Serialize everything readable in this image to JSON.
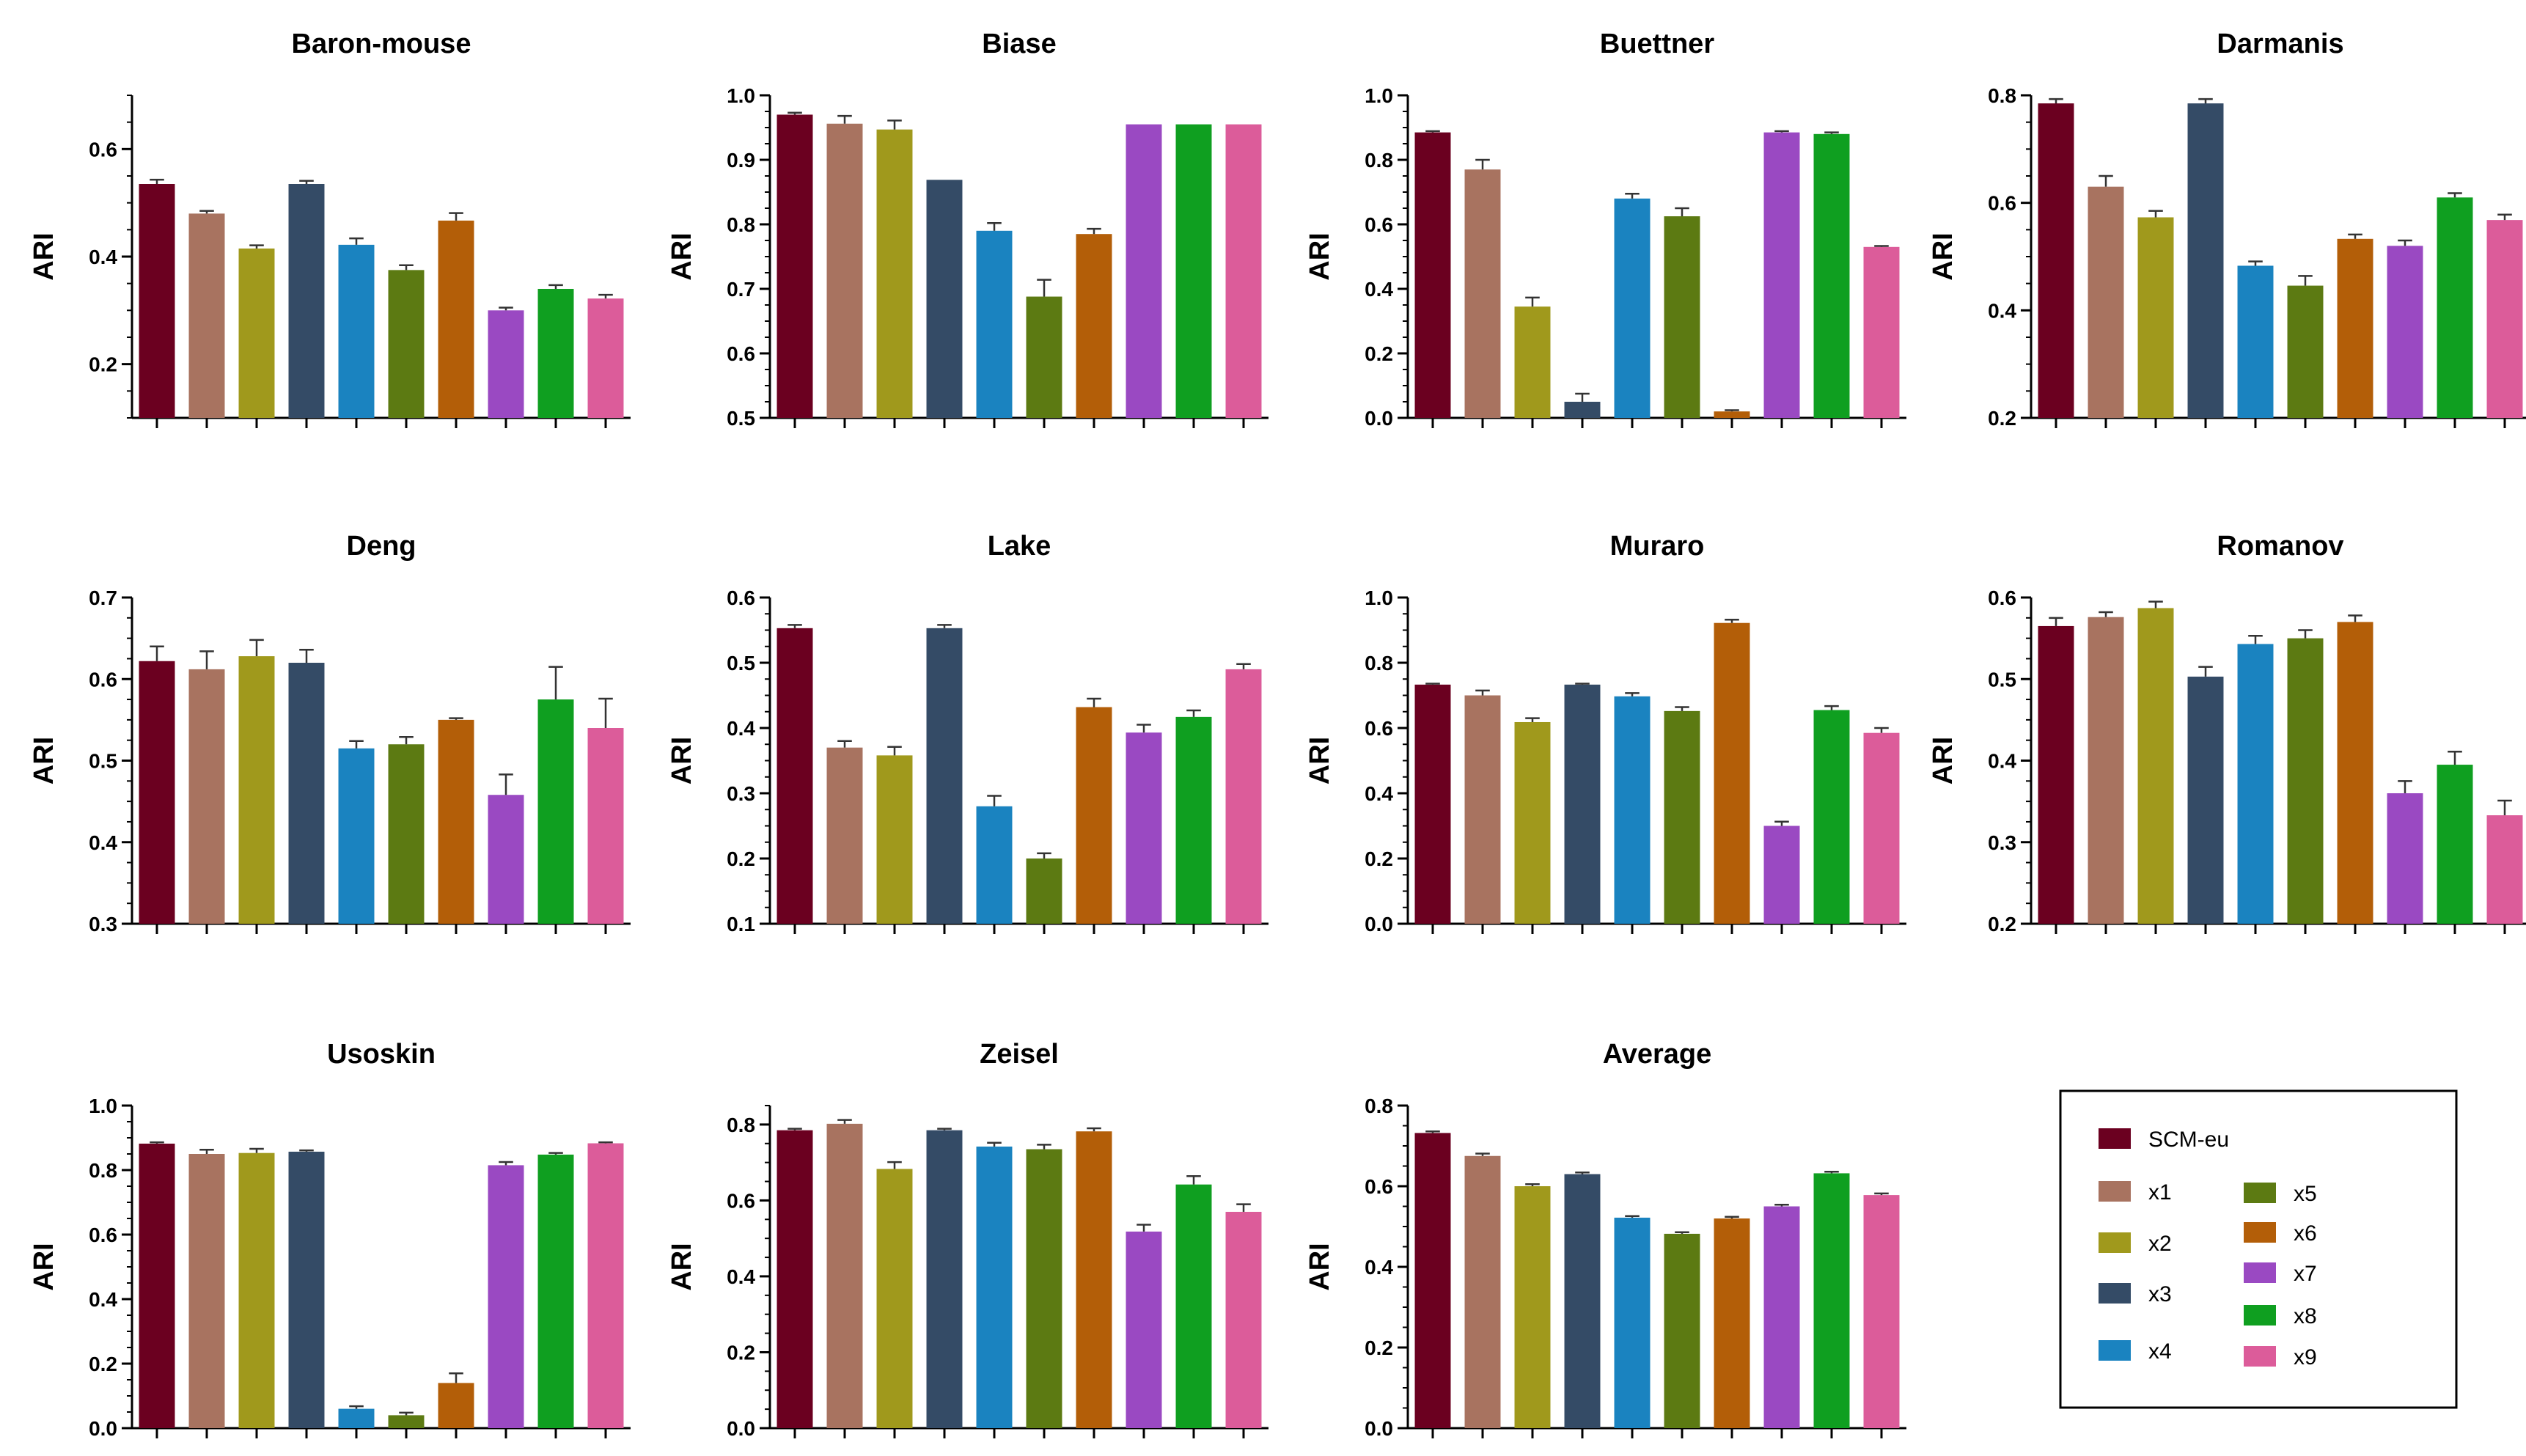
{
  "legend": {
    "items": [
      {
        "name": "SCM-eu",
        "color": "#6b0020"
      },
      {
        "name": "x1",
        "color": "#a87360"
      },
      {
        "name": "x2",
        "color": "#a0991c"
      },
      {
        "name": "x3",
        "color": "#344b66"
      },
      {
        "name": "x4",
        "color": "#1a83c0"
      },
      {
        "name": "x5",
        "color": "#5c7a12"
      },
      {
        "name": "x6",
        "color": "#b35e08"
      },
      {
        "name": "x7",
        "color": "#9a49c2"
      },
      {
        "name": "x8",
        "color": "#0f9f20"
      },
      {
        "name": "x9",
        "color": "#dc5c9a"
      }
    ]
  },
  "chart_data": [
    {
      "type": "bar",
      "title": "Baron-mouse",
      "ylabel": "ARI",
      "ylim": [
        0.1,
        0.7
      ],
      "yticks": [
        0.2,
        0.4,
        0.6
      ],
      "values": [
        0.535,
        0.48,
        0.415,
        0.535,
        0.422,
        0.375,
        0.467,
        0.3,
        0.34,
        0.322
      ],
      "errors": [
        0.008,
        0.005,
        0.006,
        0.006,
        0.012,
        0.009,
        0.014,
        0.005,
        0.007,
        0.007
      ]
    },
    {
      "type": "bar",
      "title": "Biase",
      "ylabel": "ARI",
      "ylim": [
        0.5,
        1.0
      ],
      "yticks": [
        0.5,
        0.6,
        0.7,
        0.8,
        0.9,
        1.0
      ],
      "values": [
        0.97,
        0.956,
        0.947,
        0.869,
        0.79,
        0.688,
        0.785,
        0.955,
        0.955,
        0.955
      ],
      "errors": [
        0.003,
        0.012,
        0.014,
        0.0,
        0.012,
        0.026,
        0.008,
        0.0,
        0.0,
        0.0
      ]
    },
    {
      "type": "bar",
      "title": "Buettner",
      "ylabel": "ARI",
      "ylim": [
        0.0,
        1.0
      ],
      "yticks": [
        0.0,
        0.2,
        0.4,
        0.6,
        0.8,
        1.0
      ],
      "values": [
        0.885,
        0.77,
        0.345,
        0.05,
        0.68,
        0.625,
        0.02,
        0.885,
        0.88,
        0.53
      ],
      "errors": [
        0.004,
        0.03,
        0.028,
        0.025,
        0.015,
        0.025,
        0.004,
        0.004,
        0.005,
        0.003
      ]
    },
    {
      "type": "bar",
      "title": "Darmanis",
      "ylabel": "ARI",
      "ylim": [
        0.2,
        0.8
      ],
      "yticks": [
        0.2,
        0.4,
        0.6,
        0.8
      ],
      "values": [
        0.785,
        0.63,
        0.573,
        0.785,
        0.483,
        0.446,
        0.533,
        0.52,
        0.61,
        0.568
      ],
      "errors": [
        0.008,
        0.02,
        0.012,
        0.008,
        0.008,
        0.018,
        0.008,
        0.01,
        0.008,
        0.01
      ]
    },
    {
      "type": "bar",
      "title": "Deng",
      "ylabel": "ARI",
      "ylim": [
        0.3,
        0.7
      ],
      "yticks": [
        0.3,
        0.4,
        0.5,
        0.6,
        0.7
      ],
      "values": [
        0.622,
        0.612,
        0.628,
        0.62,
        0.515,
        0.52,
        0.55,
        0.458,
        0.575,
        0.54
      ],
      "errors": [
        0.018,
        0.022,
        0.02,
        0.016,
        0.009,
        0.009,
        0.002,
        0.025,
        0.04,
        0.036
      ]
    },
    {
      "type": "bar",
      "title": "Lake",
      "ylabel": "ARI",
      "ylim": [
        0.1,
        0.6
      ],
      "yticks": [
        0.1,
        0.2,
        0.3,
        0.4,
        0.5,
        0.6
      ],
      "values": [
        0.553,
        0.37,
        0.358,
        0.553,
        0.28,
        0.2,
        0.432,
        0.393,
        0.417,
        0.49
      ],
      "errors": [
        0.005,
        0.01,
        0.013,
        0.005,
        0.016,
        0.008,
        0.013,
        0.012,
        0.01,
        0.008
      ]
    },
    {
      "type": "bar",
      "title": "Muraro",
      "ylabel": "ARI",
      "ylim": [
        0.0,
        1.0
      ],
      "yticks": [
        0.0,
        0.2,
        0.4,
        0.6,
        0.8,
        1.0
      ],
      "values": [
        0.733,
        0.7,
        0.618,
        0.733,
        0.697,
        0.652,
        0.922,
        0.3,
        0.655,
        0.585
      ],
      "errors": [
        0.003,
        0.015,
        0.012,
        0.003,
        0.01,
        0.012,
        0.01,
        0.013,
        0.012,
        0.015
      ]
    },
    {
      "type": "bar",
      "title": "Romanov",
      "ylabel": "ARI",
      "ylim": [
        0.2,
        0.6
      ],
      "yticks": [
        0.2,
        0.3,
        0.4,
        0.5,
        0.6
      ],
      "values": [
        0.565,
        0.576,
        0.587,
        0.503,
        0.543,
        0.55,
        0.57,
        0.36,
        0.395,
        0.333
      ],
      "errors": [
        0.01,
        0.006,
        0.008,
        0.012,
        0.01,
        0.01,
        0.008,
        0.015,
        0.016,
        0.018
      ]
    },
    {
      "type": "bar",
      "title": "Usoskin",
      "ylabel": "ARI",
      "ylim": [
        0.0,
        1.0
      ],
      "yticks": [
        0.0,
        0.2,
        0.4,
        0.6,
        0.8,
        1.0
      ],
      "values": [
        0.882,
        0.85,
        0.853,
        0.857,
        0.06,
        0.04,
        0.14,
        0.815,
        0.848,
        0.883
      ],
      "errors": [
        0.004,
        0.013,
        0.013,
        0.004,
        0.008,
        0.008,
        0.03,
        0.01,
        0.005,
        0.003
      ]
    },
    {
      "type": "bar",
      "title": "Zeisel",
      "ylabel": "ARI",
      "ylim": [
        0.0,
        0.85
      ],
      "yticks": [
        0.0,
        0.2,
        0.4,
        0.6,
        0.8
      ],
      "values": [
        0.785,
        0.802,
        0.683,
        0.785,
        0.742,
        0.735,
        0.782,
        0.518,
        0.642,
        0.57
      ],
      "errors": [
        0.004,
        0.01,
        0.018,
        0.004,
        0.01,
        0.012,
        0.008,
        0.018,
        0.022,
        0.02
      ]
    },
    {
      "type": "bar",
      "title": "Average",
      "ylabel": "ARI",
      "ylim": [
        0.0,
        0.8
      ],
      "yticks": [
        0.0,
        0.2,
        0.4,
        0.6,
        0.8
      ],
      "values": [
        0.732,
        0.675,
        0.6,
        0.63,
        0.522,
        0.482,
        0.52,
        0.55,
        0.632,
        0.578
      ],
      "errors": [
        0.004,
        0.006,
        0.005,
        0.004,
        0.004,
        0.004,
        0.004,
        0.004,
        0.004,
        0.004
      ]
    }
  ]
}
